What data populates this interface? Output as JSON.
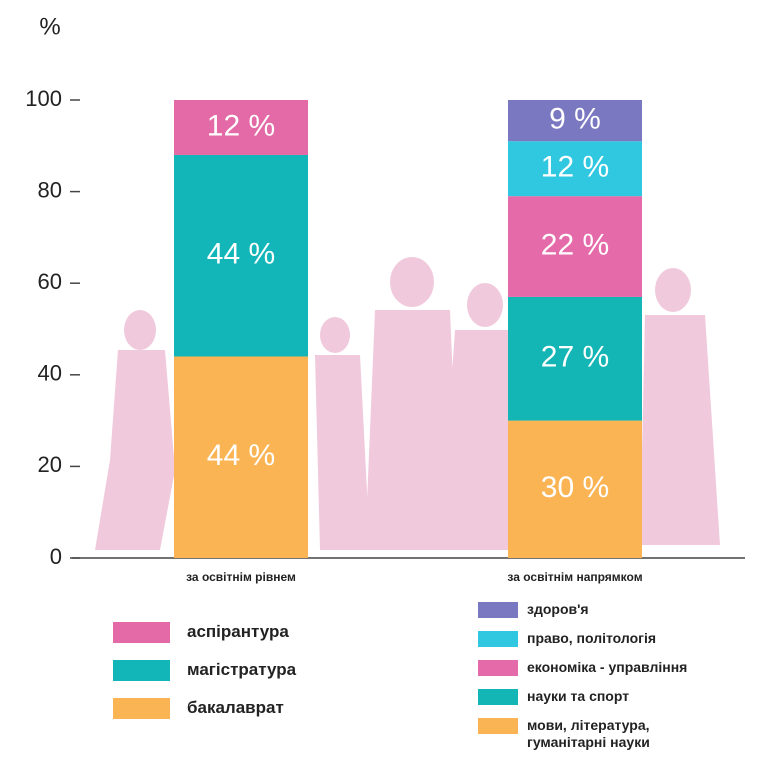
{
  "chart_data": {
    "type": "stacked_bar",
    "y_label": "%",
    "categories": [
      "за освітнім рівнем",
      "за освітнім напрямком"
    ],
    "ylim": [
      0,
      100
    ],
    "yticks": [
      0,
      20,
      40,
      60,
      80,
      100
    ],
    "series": [
      {
        "name": "бакалаврат",
        "color": "#fbb454",
        "values": [
          44,
          null
        ],
        "value_labels": [
          "44 %",
          null
        ]
      },
      {
        "name": "магістратура",
        "color": "#12b5b8",
        "values": [
          44,
          null
        ],
        "value_labels": [
          "44 %",
          null
        ]
      },
      {
        "name": "аспірантура",
        "color": "#e36aa6",
        "values": [
          12,
          null
        ],
        "value_labels": [
          "12 %",
          null
        ]
      },
      {
        "name": "мови, література,\nгуманітарні науки",
        "color": "#fbb454",
        "values": [
          null,
          30
        ],
        "value_labels": [
          null,
          "30 %"
        ]
      },
      {
        "name": "науки та спорт",
        "color": "#14b5b5",
        "values": [
          null,
          27
        ],
        "value_labels": [
          null,
          "27 %"
        ]
      },
      {
        "name": "економіка - управління",
        "color": "#e56aa9",
        "values": [
          null,
          22
        ],
        "value_labels": [
          null,
          "22 %"
        ]
      },
      {
        "name": "право, політологія",
        "color": "#2fc8e0",
        "values": [
          null,
          12
        ],
        "value_labels": [
          null,
          "12 %"
        ]
      },
      {
        "name": "здоров'я",
        "color": "#7a78c0",
        "values": [
          null,
          9
        ],
        "value_labels": [
          null,
          "9 %"
        ]
      }
    ]
  }
}
